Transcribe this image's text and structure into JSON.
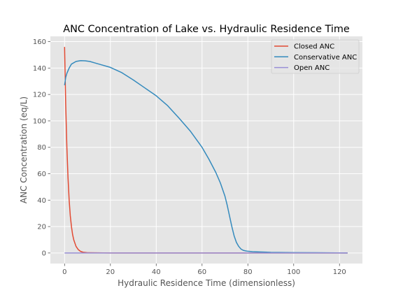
{
  "chart_data": {
    "type": "line",
    "title": "ANC Concentration of Lake vs. Hydraulic Residence Time",
    "xlabel": "Hydraulic Residence Time (dimensionless)",
    "ylabel": "ANC Concentration (eq/L)",
    "xlim": [
      -6.2,
      130.0
    ],
    "ylim": [
      -8.0,
      164.0
    ],
    "xticks": [
      0,
      20,
      40,
      60,
      80,
      100,
      120
    ],
    "yticks": [
      0,
      20,
      40,
      60,
      80,
      100,
      120,
      140,
      160
    ],
    "grid": true,
    "legend_position": "top-right",
    "colors": {
      "background": "#e5e5e5",
      "grid": "#ffffff"
    },
    "series": [
      {
        "name": "Closed ANC",
        "color": "#e24a33",
        "x": [
          0,
          0.5,
          1,
          1.5,
          2,
          2.5,
          3,
          3.5,
          4,
          5,
          6,
          7,
          8,
          10,
          20,
          40,
          60,
          80,
          100,
          123.5
        ],
        "y": [
          156,
          112,
          80,
          57,
          40,
          28,
          20,
          14,
          10,
          5,
          2.5,
          1.2,
          0.6,
          0.2,
          0,
          0,
          0,
          0,
          0,
          0
        ]
      },
      {
        "name": "Conservative ANC",
        "color": "#348abd",
        "x": [
          0,
          0.5,
          1,
          2,
          3,
          5,
          7,
          9,
          11,
          13,
          15,
          20,
          25,
          30,
          35,
          40,
          45,
          50,
          55,
          60,
          63,
          66,
          68,
          70,
          71,
          72,
          73,
          74,
          75,
          76,
          77,
          78,
          79,
          80,
          82,
          85,
          90,
          100,
          110,
          123.5
        ],
        "y": [
          127,
          133,
          136,
          140,
          143,
          145,
          145.6,
          145.5,
          145,
          144,
          143,
          140.5,
          136.5,
          131,
          125,
          119,
          111.5,
          102,
          92,
          80,
          71,
          61,
          53,
          43,
          36,
          28,
          20,
          13,
          8,
          5,
          3,
          2,
          1.6,
          1.3,
          1.0,
          0.8,
          0.5,
          0.3,
          0.2,
          0.0
        ]
      },
      {
        "name": "Open ANC",
        "color": "#988ed5",
        "x": [
          0,
          123.5
        ],
        "y": [
          0,
          0
        ]
      }
    ]
  }
}
